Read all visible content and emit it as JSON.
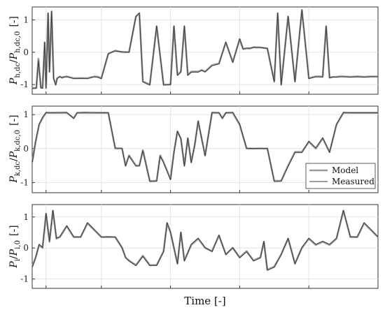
{
  "colors": {
    "model": "#9a9a9a",
    "measured": "#3a3a3a",
    "grid": "#e3e3e3",
    "axis": "#333333"
  },
  "chart_data": [
    {
      "type": "line",
      "ylabel": "P_h,dc / P_h,dc,0  [-]",
      "ylabel_parts": {
        "main": "P",
        "sub": "h,dc",
        "slash": "/",
        "main2": "P",
        "sub2": "h,dc,0",
        "unit": "[-]"
      },
      "ylim": [
        -1.3,
        1.4
      ],
      "yticks": [
        -1,
        0,
        1
      ],
      "ytick_labels": [
        "-1",
        "0",
        "1"
      ],
      "grid": true,
      "x": [
        0,
        0.006,
        0.012,
        0.018,
        0.025,
        0.03,
        0.036,
        0.04,
        0.046,
        0.05,
        0.056,
        0.062,
        0.068,
        0.072,
        0.08,
        0.086,
        0.092,
        0.1,
        0.12,
        0.14,
        0.16,
        0.18,
        0.19,
        0.2,
        0.22,
        0.24,
        0.26,
        0.28,
        0.3,
        0.31,
        0.32,
        0.34,
        0.36,
        0.38,
        0.4,
        0.41,
        0.42,
        0.43,
        0.44,
        0.45,
        0.46,
        0.47,
        0.48,
        0.49,
        0.5,
        0.52,
        0.54,
        0.56,
        0.58,
        0.6,
        0.61,
        0.62,
        0.63,
        0.64,
        0.66,
        0.68,
        0.7,
        0.71,
        0.72,
        0.74,
        0.76,
        0.78,
        0.8,
        0.82,
        0.84,
        0.85,
        0.86,
        0.87,
        0.88,
        0.89,
        0.9,
        0.92,
        0.94,
        0.96,
        0.98,
        1.0
      ],
      "series": [
        {
          "name": "Model",
          "values": [
            -1.1,
            -1.12,
            -1.1,
            -0.2,
            -1.1,
            -1.1,
            0.3,
            -1.1,
            1.2,
            -0.6,
            1.25,
            -0.8,
            -1.0,
            -0.8,
            -0.75,
            -0.78,
            -0.76,
            -0.75,
            -0.8,
            -0.8,
            -0.8,
            -0.75,
            -0.76,
            -0.8,
            -0.05,
            0.05,
            0.0,
            0.0,
            1.1,
            1.2,
            -0.9,
            -1.0,
            0.8,
            -1.0,
            -1.0,
            0.8,
            -0.7,
            -0.6,
            0.8,
            -0.7,
            -0.6,
            -0.6,
            -0.6,
            -0.55,
            -0.6,
            -0.4,
            -0.35,
            0.3,
            -0.3,
            0.4,
            0.1,
            0.12,
            0.12,
            0.15,
            0.15,
            0.12,
            -0.9,
            1.2,
            -1.0,
            1.1,
            -0.9,
            1.3,
            -0.8,
            -0.75,
            -0.75,
            0.8,
            -0.78,
            -0.76,
            -0.76,
            -0.75,
            -0.75,
            -0.76,
            -0.75,
            -0.76,
            -0.75,
            -0.75
          ]
        },
        {
          "name": "Measured",
          "values": [
            -1.12,
            -1.1,
            -1.12,
            -0.25,
            -1.1,
            -1.12,
            0.32,
            -1.12,
            1.22,
            -0.62,
            1.28,
            -0.82,
            -1.02,
            -0.82,
            -0.76,
            -0.8,
            -0.77,
            -0.76,
            -0.82,
            -0.81,
            -0.82,
            -0.76,
            -0.78,
            -0.82,
            -0.04,
            0.04,
            0.02,
            0.0,
            1.12,
            1.22,
            -0.92,
            -1.02,
            0.82,
            -1.02,
            -1.0,
            0.82,
            -0.72,
            -0.62,
            0.82,
            -0.72,
            -0.62,
            -0.61,
            -0.62,
            -0.56,
            -0.61,
            -0.42,
            -0.36,
            0.32,
            -0.32,
            0.42,
            0.1,
            0.13,
            0.12,
            0.16,
            0.14,
            0.12,
            -0.92,
            1.22,
            -1.02,
            1.12,
            -0.92,
            1.32,
            -0.82,
            -0.76,
            -0.77,
            0.82,
            -0.8,
            -0.77,
            -0.77,
            -0.76,
            -0.76,
            -0.77,
            -0.76,
            -0.77,
            -0.76,
            -0.76
          ]
        }
      ]
    },
    {
      "type": "line",
      "ylabel": "P_k,dc / P_k,dc,0  [-]",
      "ylabel_parts": {
        "main": "P",
        "sub": "k,dc",
        "slash": "/",
        "main2": "P",
        "sub2": "k,dc,0",
        "unit": "[-]"
      },
      "ylim": [
        -1.3,
        1.25
      ],
      "yticks": [
        -1,
        0,
        1
      ],
      "ytick_labels": [
        "-1",
        "0",
        "1"
      ],
      "grid": true,
      "legend": {
        "placement": "bottom-right",
        "entries": [
          "Model",
          "Measured"
        ]
      },
      "x": [
        0,
        0.01,
        0.02,
        0.03,
        0.04,
        0.05,
        0.1,
        0.12,
        0.13,
        0.15,
        0.2,
        0.22,
        0.24,
        0.26,
        0.27,
        0.28,
        0.3,
        0.31,
        0.32,
        0.34,
        0.36,
        0.37,
        0.38,
        0.4,
        0.41,
        0.42,
        0.43,
        0.44,
        0.45,
        0.46,
        0.47,
        0.48,
        0.5,
        0.52,
        0.54,
        0.55,
        0.56,
        0.58,
        0.6,
        0.62,
        0.64,
        0.66,
        0.67,
        0.68,
        0.7,
        0.72,
        0.74,
        0.75,
        0.76,
        0.78,
        0.8,
        0.82,
        0.84,
        0.86,
        0.88,
        0.9,
        0.92,
        1.0
      ],
      "series": [
        {
          "name": "Model",
          "values": [
            -0.4,
            0.2,
            0.7,
            0.9,
            1.05,
            1.05,
            1.05,
            0.9,
            1.05,
            1.05,
            1.05,
            1.05,
            0.0,
            0.0,
            -0.5,
            -0.2,
            -0.5,
            -0.5,
            -0.05,
            -0.95,
            -0.95,
            -0.2,
            -0.4,
            -0.9,
            -0.1,
            0.5,
            0.3,
            -0.5,
            0.3,
            -0.4,
            0.1,
            0.8,
            -0.2,
            1.05,
            1.05,
            0.9,
            1.05,
            1.05,
            0.7,
            0.0,
            0.0,
            0.0,
            0.0,
            0.0,
            -0.95,
            -0.95,
            -0.5,
            -0.3,
            -0.1,
            -0.1,
            0.2,
            0.0,
            0.3,
            -0.1,
            0.7,
            1.05,
            1.05,
            1.05
          ]
        },
        {
          "name": "Measured",
          "values": [
            -0.42,
            0.22,
            0.72,
            0.92,
            1.07,
            1.06,
            1.07,
            0.88,
            1.06,
            1.07,
            1.06,
            1.06,
            0.02,
            0.01,
            -0.52,
            -0.22,
            -0.52,
            -0.51,
            -0.06,
            -0.97,
            -0.96,
            -0.22,
            -0.42,
            -0.92,
            -0.12,
            0.52,
            0.28,
            -0.52,
            0.32,
            -0.42,
            0.12,
            0.82,
            -0.22,
            1.07,
            1.06,
            0.88,
            1.06,
            1.07,
            0.72,
            0.01,
            0.0,
            0.01,
            0.0,
            0.01,
            -0.97,
            -0.96,
            -0.52,
            -0.32,
            -0.12,
            -0.12,
            0.22,
            0.02,
            0.32,
            -0.12,
            0.72,
            1.07,
            1.06,
            1.06
          ]
        }
      ]
    },
    {
      "type": "line",
      "ylabel": "P_i / P_i,0  [-]",
      "ylabel_parts": {
        "main": "P",
        "sub": "i",
        "slash": "/",
        "main2": "P",
        "sub2": "i,0",
        "unit": "[-]"
      },
      "ylim": [
        -1.3,
        1.4
      ],
      "yticks": [
        -1,
        0,
        1
      ],
      "ytick_labels": [
        "-1",
        "0",
        "1"
      ],
      "grid": true,
      "xlabel": "Time [-]",
      "x": [
        0,
        0.01,
        0.02,
        0.03,
        0.04,
        0.05,
        0.06,
        0.07,
        0.08,
        0.1,
        0.12,
        0.14,
        0.16,
        0.2,
        0.22,
        0.24,
        0.26,
        0.27,
        0.28,
        0.3,
        0.32,
        0.34,
        0.36,
        0.38,
        0.39,
        0.4,
        0.42,
        0.43,
        0.44,
        0.46,
        0.48,
        0.5,
        0.52,
        0.54,
        0.56,
        0.58,
        0.6,
        0.62,
        0.64,
        0.66,
        0.67,
        0.68,
        0.7,
        0.72,
        0.74,
        0.76,
        0.78,
        0.8,
        0.82,
        0.84,
        0.86,
        0.88,
        0.9,
        0.92,
        0.94,
        0.96,
        1.0
      ],
      "series": [
        {
          "name": "Model",
          "values": [
            -0.6,
            -0.3,
            0.1,
            0.0,
            1.1,
            0.2,
            1.2,
            0.3,
            0.35,
            0.7,
            0.35,
            0.35,
            0.8,
            0.35,
            0.35,
            0.35,
            0.0,
            -0.3,
            -0.4,
            -0.55,
            -0.25,
            -0.55,
            -0.55,
            -0.1,
            0.8,
            0.5,
            -0.5,
            0.5,
            -0.4,
            0.1,
            0.3,
            0.0,
            -0.1,
            0.4,
            -0.2,
            0.0,
            -0.3,
            -0.1,
            -0.4,
            -0.3,
            0.2,
            -0.7,
            -0.6,
            -0.2,
            0.3,
            -0.5,
            0.0,
            0.3,
            0.1,
            0.2,
            0.1,
            0.3,
            1.2,
            0.35,
            0.35,
            0.8,
            0.35
          ]
        },
        {
          "name": "Measured",
          "values": [
            -0.62,
            -0.32,
            0.12,
            0.02,
            1.12,
            0.22,
            1.22,
            0.32,
            0.37,
            0.72,
            0.37,
            0.36,
            0.82,
            0.36,
            0.37,
            0.36,
            0.02,
            -0.32,
            -0.42,
            -0.57,
            -0.27,
            -0.57,
            -0.56,
            -0.12,
            0.82,
            0.52,
            -0.52,
            0.52,
            -0.42,
            0.12,
            0.32,
            0.02,
            -0.12,
            0.42,
            -0.22,
            0.02,
            -0.32,
            -0.12,
            -0.42,
            -0.32,
            0.22,
            -0.72,
            -0.62,
            -0.22,
            0.32,
            -0.52,
            0.02,
            0.32,
            0.12,
            0.22,
            0.12,
            0.32,
            1.22,
            0.37,
            0.36,
            0.82,
            0.36
          ]
        }
      ]
    }
  ]
}
